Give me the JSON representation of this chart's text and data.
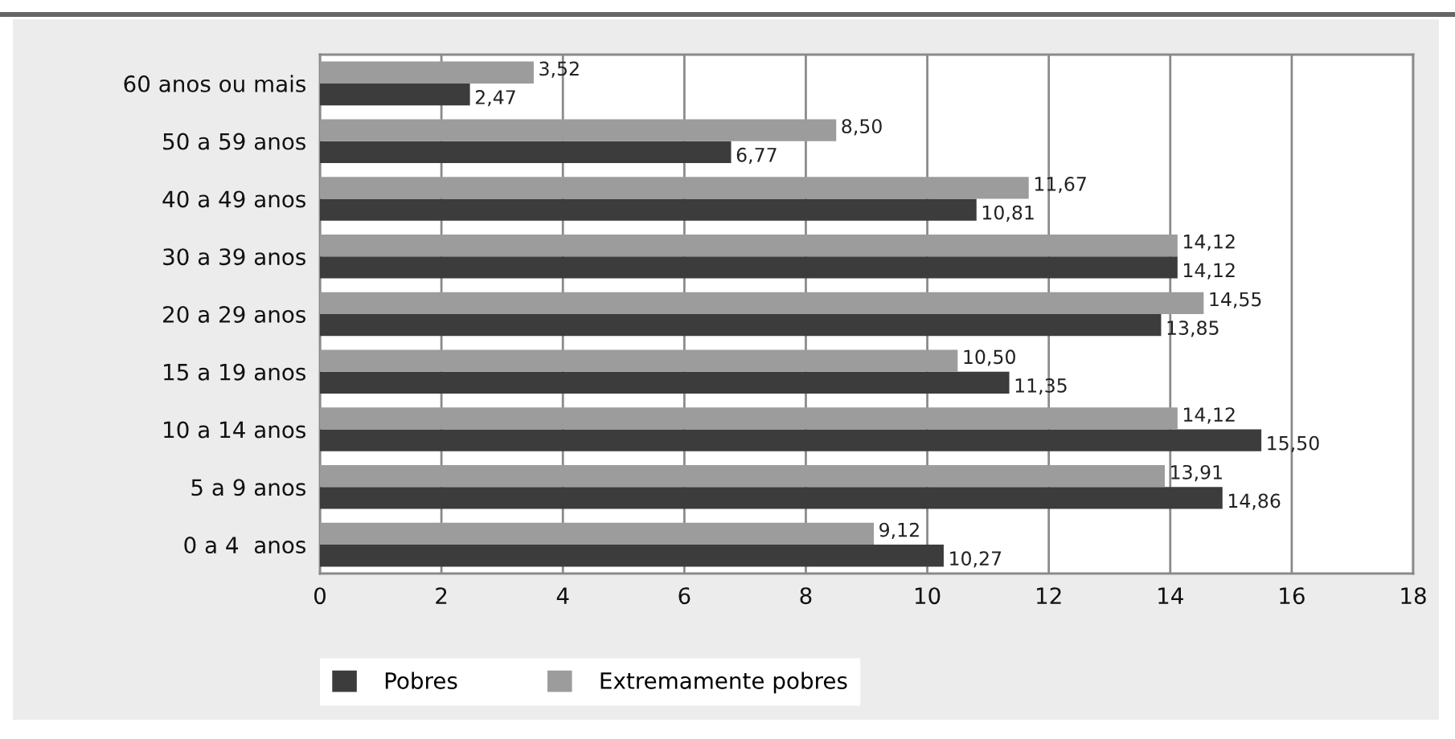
{
  "chart_data": {
    "type": "bar",
    "orientation": "horizontal",
    "categories": [
      "60 anos ou mais",
      "50 a 59 anos",
      "40 a 49 anos",
      "30 a 39 anos",
      "20 a 29 anos",
      "15 a 19 anos",
      "10 a 14 anos",
      "5 a 9 anos",
      "0 a 4  anos"
    ],
    "series": [
      {
        "name": "Pobres",
        "color": "#3c3c3c",
        "values": [
          2.47,
          6.77,
          10.81,
          14.12,
          13.85,
          11.35,
          15.5,
          14.86,
          10.27
        ],
        "value_labels": [
          "2,47",
          "6,77",
          "10,81",
          "14,12",
          "13,85",
          "11,35",
          "15,50",
          "14,86",
          "10,27"
        ]
      },
      {
        "name": "Extremamente pobres",
        "color": "#9c9c9c",
        "values": [
          3.52,
          8.5,
          11.67,
          14.12,
          14.55,
          10.5,
          14.12,
          13.91,
          9.12
        ],
        "value_labels": [
          "3,52",
          "8,50",
          "11,67",
          "14,12",
          "14,55",
          "10,50",
          "14,12",
          "13,91",
          "9,12"
        ]
      }
    ],
    "xlim": [
      0,
      18
    ],
    "xticks": [
      0,
      2,
      4,
      6,
      8,
      10,
      12,
      14,
      16,
      18
    ],
    "grid": "x",
    "legend": "bottom"
  }
}
